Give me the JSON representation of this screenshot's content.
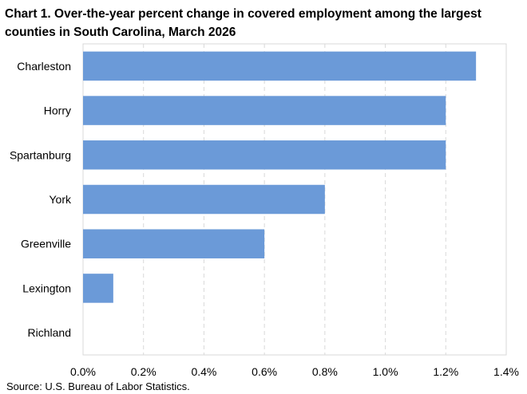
{
  "chart_data": {
    "type": "bar",
    "orientation": "horizontal",
    "title": "Chart 1. Over-the-year percent change in covered employment among the largest counties in South Carolina, March 2026",
    "xlabel": "",
    "ylabel": "",
    "categories": [
      "Charleston",
      "Horry",
      "Spartanburg",
      "York",
      "Greenville",
      "Lexington",
      "Richland"
    ],
    "values": [
      1.3,
      1.2,
      1.2,
      0.8,
      0.6,
      0.1,
      0.0
    ],
    "value_unit": "%",
    "xlim": [
      0,
      1.4
    ],
    "xticks": [
      0.0,
      0.2,
      0.4,
      0.6,
      0.8,
      1.0,
      1.2,
      1.4
    ],
    "xtick_labels": [
      "0.0%",
      "0.2%",
      "0.4%",
      "0.6%",
      "0.8%",
      "1.0%",
      "1.2%",
      "1.4%"
    ],
    "grid": true,
    "grid_style": "dashed-vertical",
    "legend": "none",
    "bar_color": "#6b9ad8",
    "source": "Source: U.S. Bureau of Labor Statistics."
  }
}
